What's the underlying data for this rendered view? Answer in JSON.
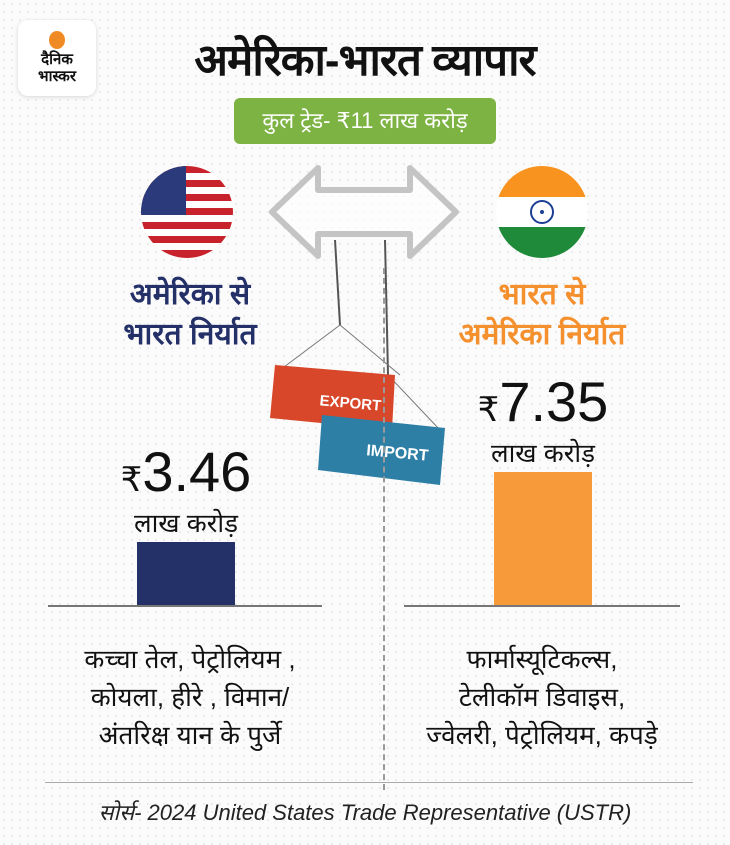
{
  "logo": {
    "line1": "दैनिक",
    "line2": "भास्कर"
  },
  "title": "अमेरिका-भारत व्यापार",
  "total_trade": "कुल ट्रेड- ₹11 लाख करोड़",
  "containers": {
    "top": "EXPORT",
    "bottom": "IMPORT"
  },
  "colors": {
    "us": "#243068",
    "india": "#f79a3a",
    "badge": "#7cb342"
  },
  "chart_data": {
    "type": "bar",
    "categories": [
      "अमेरिका से भारत निर्यात",
      "भारत से अमेरिका निर्यात"
    ],
    "values": [
      3.46,
      7.35
    ],
    "value_labels": [
      "3.46",
      "7.35"
    ],
    "currency": "₹",
    "unit": "लाख करोड़"
  },
  "left": {
    "label_line1": "अमेरिका से",
    "label_line2": "भारत निर्यात",
    "items": [
      "कच्चा तेल, पेट्रोलियम ,",
      "कोयला, हीरे , विमान/",
      "अंतरिक्ष यान के पुर्जे"
    ]
  },
  "right": {
    "label_line1": "भारत से",
    "label_line2": "अमेरिका निर्यात",
    "items": [
      "फार्मास्यूटिकल्स,",
      "टेलीकॉम डिवाइस,",
      "ज्वेलरी, पेट्रोलियम, कपड़े"
    ]
  },
  "source": "सोर्स- 2024 United States Trade Representative (USTR)"
}
